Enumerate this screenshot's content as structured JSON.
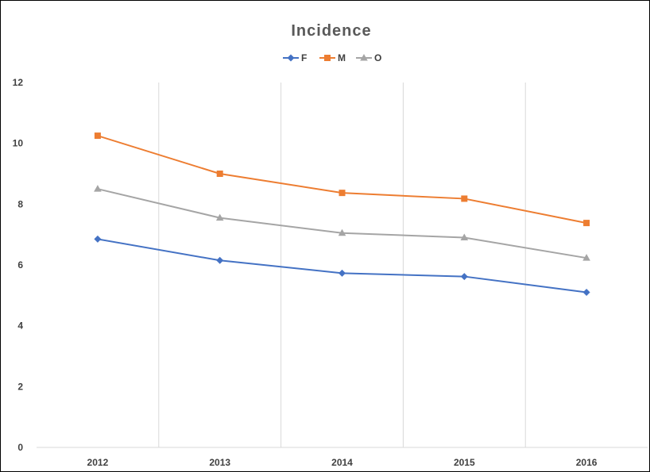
{
  "chart_data": {
    "type": "line",
    "title": "Incidence",
    "categories": [
      "2012",
      "2013",
      "2014",
      "2015",
      "2016"
    ],
    "series": [
      {
        "name": "F",
        "values": [
          6.85,
          6.15,
          5.73,
          5.62,
          5.1
        ],
        "color": "#4472c4",
        "marker": "diamond"
      },
      {
        "name": "M",
        "values": [
          10.25,
          9.0,
          8.37,
          8.18,
          7.38
        ],
        "color": "#ed7d31",
        "marker": "square"
      },
      {
        "name": "O",
        "values": [
          8.5,
          7.55,
          7.05,
          6.9,
          6.23
        ],
        "color": "#a5a5a5",
        "marker": "triangle"
      }
    ],
    "ylim": [
      0,
      12
    ],
    "yticks": [
      "0",
      "2",
      "4",
      "6",
      "8",
      "10",
      "12"
    ],
    "xlabel": "",
    "ylabel": "",
    "grid": "vertical",
    "legend": "top"
  }
}
